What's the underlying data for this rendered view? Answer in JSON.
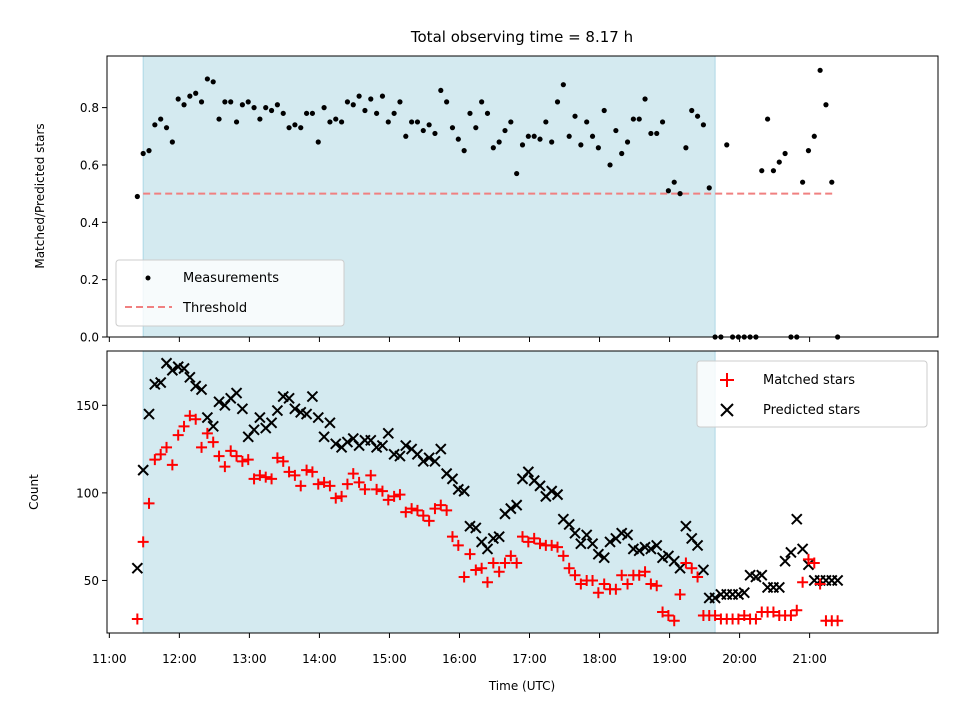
{
  "chart_data": [
    {
      "type": "scatter",
      "title": "Total observing time = 8.17 h",
      "xlabel": "",
      "ylabel": "Matched/Predicted stars",
      "xlim": [
        "10:58",
        "22:50"
      ],
      "ylim": [
        0,
        0.98
      ],
      "yticks": [
        "0.0",
        "0.2",
        "0.4",
        "0.6",
        "0.8"
      ],
      "observing_window": [
        "11:29",
        "19:39"
      ],
      "legend": {
        "position": "lower-left",
        "entries": [
          "Measurements",
          "Threshold"
        ]
      },
      "colors": {
        "measurements": "#000000",
        "threshold": "#f08080",
        "window": "#d4eaf0"
      },
      "threshold": {
        "name": "Threshold",
        "value": 0.5,
        "x": [
          "11:29",
          "21:20"
        ]
      },
      "series": [
        {
          "name": "Measurements",
          "x": [
            "11:24",
            "11:29",
            "11:34",
            "11:39",
            "11:44",
            "11:49",
            "11:54",
            "11:59",
            "12:04",
            "12:09",
            "12:14",
            "12:19",
            "12:24",
            "12:29",
            "12:34",
            "12:39",
            "12:44",
            "12:49",
            "12:54",
            "12:59",
            "13:04",
            "13:09",
            "13:14",
            "13:19",
            "13:24",
            "13:29",
            "13:34",
            "13:39",
            "13:44",
            "13:49",
            "13:54",
            "13:59",
            "14:04",
            "14:09",
            "14:14",
            "14:19",
            "14:24",
            "14:29",
            "14:34",
            "14:39",
            "14:44",
            "14:49",
            "14:54",
            "14:59",
            "15:04",
            "15:09",
            "15:14",
            "15:19",
            "15:24",
            "15:29",
            "15:34",
            "15:39",
            "15:44",
            "15:49",
            "15:54",
            "15:59",
            "16:04",
            "16:09",
            "16:14",
            "16:19",
            "16:24",
            "16:29",
            "16:34",
            "16:39",
            "16:44",
            "16:49",
            "16:54",
            "16:59",
            "17:04",
            "17:09",
            "17:14",
            "17:19",
            "17:24",
            "17:29",
            "17:34",
            "17:39",
            "17:44",
            "17:49",
            "17:54",
            "17:59",
            "18:04",
            "18:09",
            "18:14",
            "18:19",
            "18:24",
            "18:29",
            "18:34",
            "18:39",
            "18:44",
            "18:49",
            "18:54",
            "18:59",
            "19:04",
            "19:09",
            "19:14",
            "19:19",
            "19:24",
            "19:29",
            "19:34",
            "19:39",
            "19:44",
            "19:49",
            "19:54",
            "19:59",
            "20:04",
            "20:09",
            "20:14",
            "20:19",
            "20:24",
            "20:29",
            "20:34",
            "20:39",
            "20:44",
            "20:49",
            "20:54",
            "20:59",
            "21:04",
            "21:09",
            "21:14",
            "21:19",
            "21:24"
          ],
          "y": [
            0.49,
            0.64,
            0.65,
            0.74,
            0.76,
            0.73,
            0.68,
            0.83,
            0.81,
            0.84,
            0.85,
            0.82,
            0.9,
            0.89,
            0.76,
            0.82,
            0.82,
            0.75,
            0.81,
            0.82,
            0.8,
            0.76,
            0.8,
            0.79,
            0.81,
            0.78,
            0.73,
            0.74,
            0.73,
            0.78,
            0.78,
            0.68,
            0.8,
            0.75,
            0.76,
            0.75,
            0.82,
            0.81,
            0.84,
            0.79,
            0.83,
            0.78,
            0.84,
            0.75,
            0.78,
            0.82,
            0.7,
            0.75,
            0.75,
            0.72,
            0.74,
            0.71,
            0.86,
            0.82,
            0.73,
            0.69,
            0.65,
            0.78,
            0.73,
            0.82,
            0.78,
            0.66,
            0.68,
            0.72,
            0.75,
            0.57,
            0.67,
            0.7,
            0.7,
            0.69,
            0.75,
            0.68,
            0.82,
            0.88,
            0.7,
            0.77,
            0.67,
            0.75,
            0.7,
            0.66,
            0.79,
            0.6,
            0.72,
            0.64,
            0.68,
            0.76,
            0.76,
            0.83,
            0.71,
            0.71,
            0.75,
            0.51,
            0.54,
            0.5,
            0.66,
            0.79,
            0.77,
            0.74,
            0.52,
            0,
            0,
            0.67,
            0,
            0,
            0,
            0,
            0,
            0.58,
            0.76,
            0.58,
            0.61,
            0.64,
            0,
            0,
            0.54,
            0.65,
            0.7,
            0.93,
            0.81,
            0.54,
            0
          ]
        }
      ]
    },
    {
      "type": "scatter",
      "title": "",
      "xlabel": "Time (UTC)",
      "ylabel": "Count",
      "xlim": [
        "10:58",
        "22:50"
      ],
      "ylim": [
        20,
        181
      ],
      "yticks": [
        "50",
        "100",
        "150"
      ],
      "xticks": [
        "11:00",
        "12:00",
        "13:00",
        "14:00",
        "15:00",
        "16:00",
        "17:00",
        "18:00",
        "19:00",
        "20:00",
        "21:00"
      ],
      "observing_window": [
        "11:29",
        "19:39"
      ],
      "legend": {
        "position": "top-right",
        "entries": [
          "Matched stars",
          "Predicted stars"
        ]
      },
      "colors": {
        "matched": "#ff0000",
        "predicted": "#000000",
        "window": "#d4eaf0"
      },
      "series": [
        {
          "name": "Matched stars",
          "marker": "plus",
          "x": [
            "11:24",
            "11:29",
            "11:34",
            "11:39",
            "11:44",
            "11:49",
            "11:54",
            "11:59",
            "12:04",
            "12:09",
            "12:14",
            "12:19",
            "12:24",
            "12:29",
            "12:34",
            "12:39",
            "12:44",
            "12:49",
            "12:54",
            "12:59",
            "13:04",
            "13:09",
            "13:14",
            "13:19",
            "13:24",
            "13:29",
            "13:34",
            "13:39",
            "13:44",
            "13:49",
            "13:54",
            "13:59",
            "14:04",
            "14:09",
            "14:14",
            "14:19",
            "14:24",
            "14:29",
            "14:34",
            "14:39",
            "14:44",
            "14:49",
            "14:54",
            "14:59",
            "15:04",
            "15:09",
            "15:14",
            "15:19",
            "15:24",
            "15:29",
            "15:34",
            "15:39",
            "15:44",
            "15:49",
            "15:54",
            "15:59",
            "16:04",
            "16:09",
            "16:14",
            "16:19",
            "16:24",
            "16:29",
            "16:34",
            "16:39",
            "16:44",
            "16:49",
            "16:54",
            "16:59",
            "17:04",
            "17:09",
            "17:14",
            "17:19",
            "17:24",
            "17:29",
            "17:34",
            "17:39",
            "17:44",
            "17:49",
            "17:54",
            "17:59",
            "18:04",
            "18:09",
            "18:14",
            "18:19",
            "18:24",
            "18:29",
            "18:34",
            "18:39",
            "18:44",
            "18:49",
            "18:54",
            "18:59",
            "19:04",
            "19:09",
            "19:14",
            "19:19",
            "19:24",
            "19:29",
            "19:34",
            "19:39",
            "19:44",
            "19:49",
            "19:54",
            "19:59",
            "20:04",
            "20:09",
            "20:14",
            "20:19",
            "20:24",
            "20:29",
            "20:34",
            "20:39",
            "20:44",
            "20:49",
            "20:54",
            "20:59",
            "21:04",
            "21:09",
            "21:14",
            "21:19",
            "21:24"
          ],
          "y": [
            28,
            72,
            94,
            119,
            122,
            126,
            116,
            133,
            138,
            144,
            142,
            126,
            134,
            129,
            121,
            115,
            124,
            121,
            118,
            119,
            108,
            110,
            109,
            108,
            120,
            118,
            112,
            110,
            104,
            113,
            112,
            105,
            106,
            104,
            97,
            98,
            105,
            111,
            106,
            102,
            110,
            102,
            101,
            96,
            98,
            99,
            89,
            91,
            90,
            87,
            84,
            91,
            93,
            90,
            75,
            70,
            52,
            65,
            56,
            57,
            49,
            60,
            55,
            60,
            64,
            60,
            75,
            72,
            74,
            71,
            70,
            70,
            69,
            64,
            57,
            53,
            48,
            50,
            50,
            43,
            48,
            45,
            45,
            53,
            48,
            53,
            53,
            55,
            48,
            47,
            32,
            30,
            27,
            42,
            60,
            57,
            52,
            30,
            30,
            30,
            28,
            28,
            28,
            28,
            30,
            28,
            28,
            32,
            32,
            32,
            30,
            30,
            30,
            33,
            49,
            62,
            60,
            48,
            27,
            27,
            27
          ]
        },
        {
          "name": "Predicted stars",
          "marker": "cross",
          "x": [
            "11:24",
            "11:29",
            "11:34",
            "11:39",
            "11:44",
            "11:49",
            "11:54",
            "11:59",
            "12:04",
            "12:09",
            "12:14",
            "12:19",
            "12:24",
            "12:29",
            "12:34",
            "12:39",
            "12:44",
            "12:49",
            "12:54",
            "12:59",
            "13:04",
            "13:09",
            "13:14",
            "13:19",
            "13:24",
            "13:29",
            "13:34",
            "13:39",
            "13:44",
            "13:49",
            "13:54",
            "13:59",
            "14:04",
            "14:09",
            "14:14",
            "14:19",
            "14:24",
            "14:29",
            "14:34",
            "14:39",
            "14:44",
            "14:49",
            "14:54",
            "14:59",
            "15:04",
            "15:09",
            "15:14",
            "15:19",
            "15:24",
            "15:29",
            "15:34",
            "15:39",
            "15:44",
            "15:49",
            "15:54",
            "15:59",
            "16:04",
            "16:09",
            "16:14",
            "16:19",
            "16:24",
            "16:29",
            "16:34",
            "16:39",
            "16:44",
            "16:49",
            "16:54",
            "16:59",
            "17:04",
            "17:09",
            "17:14",
            "17:19",
            "17:24",
            "17:29",
            "17:34",
            "17:39",
            "17:44",
            "17:49",
            "17:54",
            "17:59",
            "18:04",
            "18:09",
            "18:14",
            "18:19",
            "18:24",
            "18:29",
            "18:34",
            "18:39",
            "18:44",
            "18:49",
            "18:54",
            "18:59",
            "19:04",
            "19:09",
            "19:14",
            "19:19",
            "19:24",
            "19:29",
            "19:34",
            "19:39",
            "19:44",
            "19:49",
            "19:54",
            "19:59",
            "20:04",
            "20:09",
            "20:14",
            "20:19",
            "20:24",
            "20:29",
            "20:34",
            "20:39",
            "20:44",
            "20:49",
            "20:54",
            "20:59",
            "21:04",
            "21:09",
            "21:14",
            "21:19",
            "21:24"
          ],
          "y": [
            57,
            113,
            145,
            162,
            163,
            174,
            170,
            172,
            171,
            166,
            161,
            159,
            143,
            138,
            152,
            150,
            154,
            157,
            148,
            132,
            136,
            143,
            137,
            140,
            147,
            155,
            154,
            148,
            146,
            145,
            155,
            143,
            132,
            140,
            128,
            126,
            129,
            131,
            127,
            130,
            130,
            126,
            127,
            134,
            122,
            121,
            127,
            125,
            122,
            118,
            120,
            118,
            125,
            111,
            108,
            102,
            101,
            81,
            80,
            72,
            68,
            74,
            75,
            88,
            91,
            93,
            108,
            112,
            107,
            104,
            98,
            101,
            99,
            85,
            82,
            77,
            71,
            76,
            71,
            65,
            63,
            72,
            74,
            77,
            76,
            68,
            67,
            69,
            68,
            70,
            63,
            64,
            61,
            57,
            81,
            74,
            70,
            56,
            40,
            40,
            42,
            42,
            42,
            42,
            43,
            53,
            52,
            53,
            46,
            46,
            46,
            61,
            66,
            85,
            68,
            59,
            50,
            50,
            50,
            50,
            50
          ]
        }
      ]
    }
  ]
}
